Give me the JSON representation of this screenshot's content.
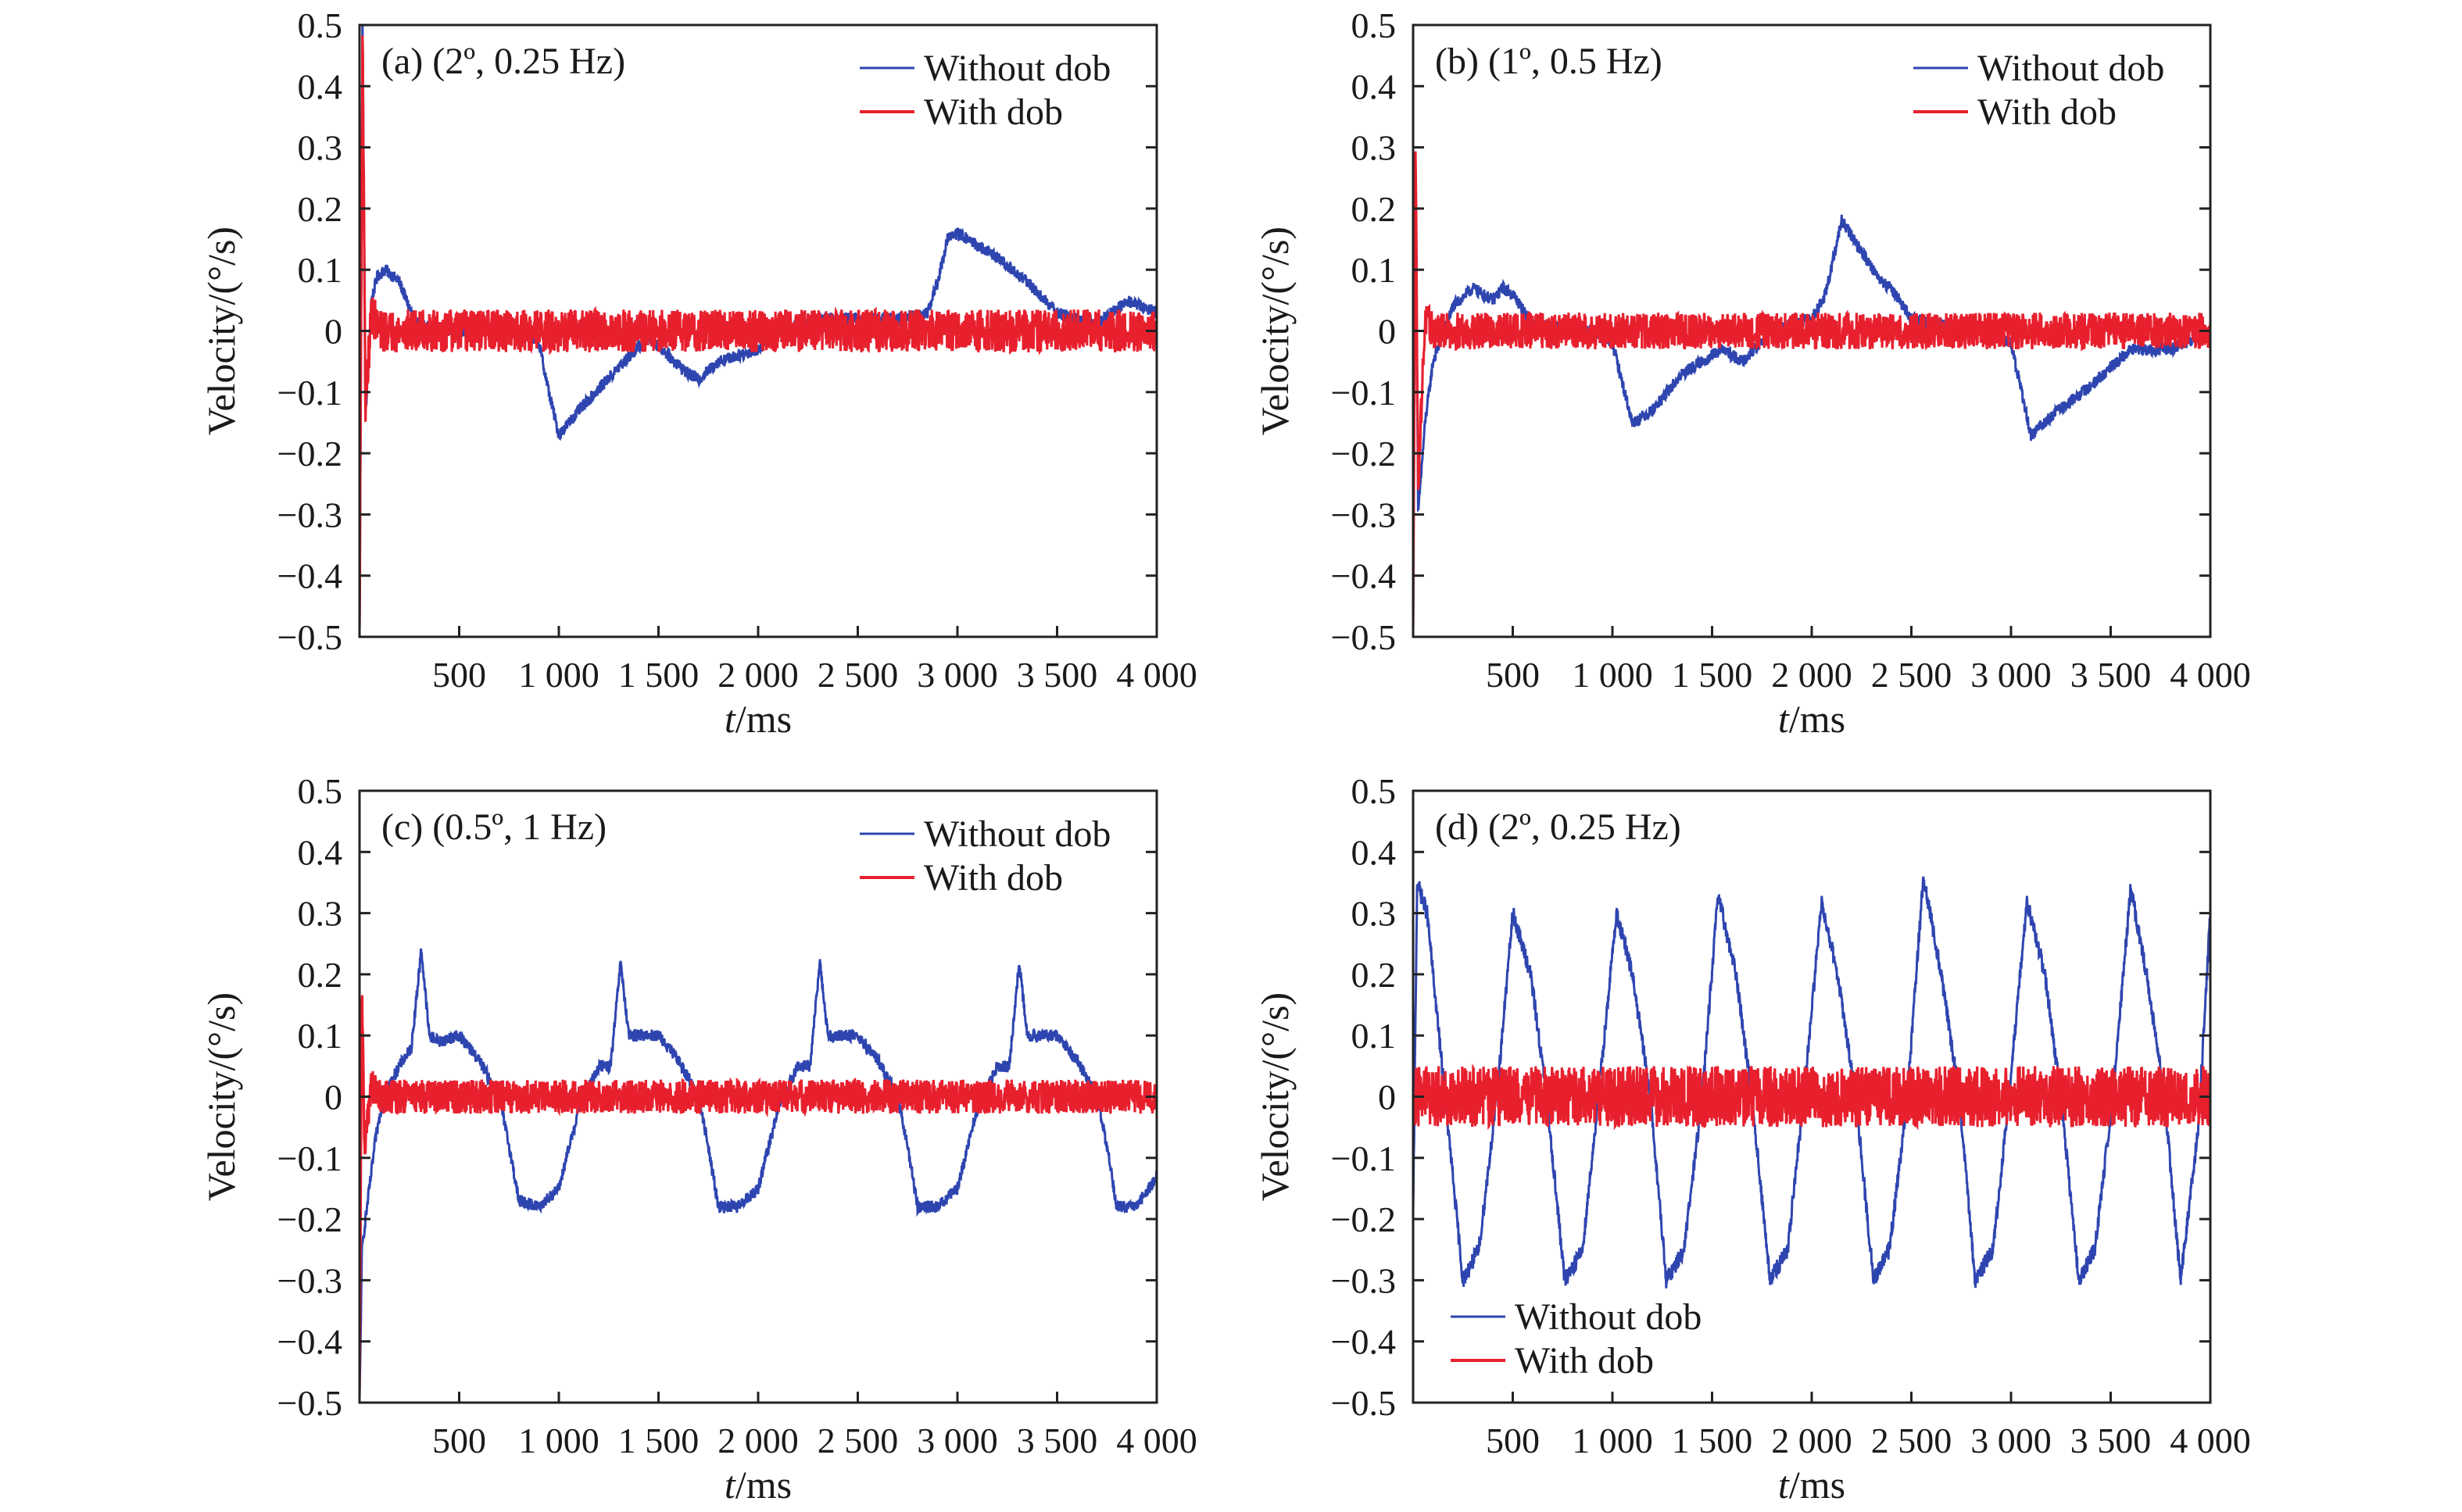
{
  "colors": {
    "without": "#2e45b0",
    "with": "#e8202e"
  },
  "chart_data": [
    {
      "type": "line",
      "panel_label": "(a) (2º, 0.25 Hz)",
      "xlabel": {
        "italic": "t",
        "rest": "/ms"
      },
      "ylabel": "Velocity/(°/s)",
      "xlim": [
        0,
        4000
      ],
      "ylim": [
        -0.5,
        0.5
      ],
      "xtick_labels": [
        "500",
        "1 000",
        "1 500",
        "2 000",
        "2 500",
        "3 000",
        "3 500",
        "4 000"
      ],
      "ytick_labels": [
        "0.5",
        "0.4",
        "0.3",
        "0.2",
        "0.1",
        "0",
        "−0.1",
        "−0.2",
        "−0.3",
        "−0.4",
        "−0.5"
      ],
      "legend_position": "top-right",
      "series": [
        {
          "name": "Without dob",
          "color": "#2e45b0",
          "noise": 0.01,
          "x": [
            0,
            15,
            30,
            60,
            90,
            130,
            200,
            260,
            300,
            500,
            800,
            900,
            950,
            1000,
            1100,
            1300,
            1450,
            1650,
            1700,
            1800,
            2000,
            2100,
            2300,
            2700,
            2850,
            2900,
            2950,
            3000,
            3200,
            3350,
            3500,
            3700,
            3850,
            4000
          ],
          "y": [
            -0.5,
            0.5,
            -0.14,
            0.05,
            0.09,
            0.1,
            0.08,
            0.03,
            0.01,
            0.0,
            0.0,
            -0.02,
            -0.1,
            -0.17,
            -0.13,
            -0.06,
            -0.01,
            -0.07,
            -0.08,
            -0.05,
            -0.03,
            0.0,
            0.02,
            0.02,
            0.03,
            0.08,
            0.15,
            0.16,
            0.12,
            0.08,
            0.03,
            0.01,
            0.05,
            0.03
          ]
        },
        {
          "name": "With dob",
          "color": "#e8202e",
          "noise": 0.035,
          "x": [
            0,
            15,
            30,
            60,
            100,
            4000
          ],
          "y": [
            -0.5,
            0.5,
            -0.12,
            0.03,
            0.0,
            0.0
          ]
        }
      ]
    },
    {
      "type": "line",
      "panel_label": "(b) (1º, 0.5 Hz)",
      "xlabel": {
        "italic": "t",
        "rest": "/ms"
      },
      "ylabel": "Velocity/(°/s)",
      "xlim": [
        0,
        4000
      ],
      "ylim": [
        -0.5,
        0.5
      ],
      "xtick_labels": [
        "500",
        "1 000",
        "1 500",
        "2 000",
        "2 500",
        "3 000",
        "3 500",
        "4 000"
      ],
      "ytick_labels": [
        "0.5",
        "0.4",
        "0.3",
        "0.2",
        "0.1",
        "0",
        "−0.1",
        "−0.2",
        "−0.3",
        "−0.4",
        "−0.5"
      ],
      "legend_position": "top-right",
      "series": [
        {
          "name": "Without dob",
          "color": "#2e45b0",
          "noise": 0.01,
          "x": [
            0,
            12,
            25,
            60,
            100,
            200,
            300,
            400,
            450,
            500,
            600,
            900,
            1000,
            1100,
            1200,
            1350,
            1550,
            1650,
            1800,
            2000,
            2070,
            2150,
            2250,
            2350,
            2400,
            2500,
            2650,
            2900,
            3000,
            3100,
            3200,
            3400,
            3600,
            3800,
            4000
          ],
          "y": [
            -0.5,
            0.3,
            -0.3,
            -0.15,
            -0.05,
            0.04,
            0.07,
            0.05,
            0.07,
            0.06,
            0.01,
            0.0,
            -0.02,
            -0.15,
            -0.13,
            -0.07,
            -0.03,
            -0.05,
            0.0,
            0.02,
            0.06,
            0.18,
            0.13,
            0.08,
            0.07,
            0.02,
            0.01,
            0.0,
            -0.02,
            -0.17,
            -0.14,
            -0.09,
            -0.03,
            -0.03,
            0.0
          ]
        },
        {
          "name": "With dob",
          "color": "#e8202e",
          "noise": 0.03,
          "x": [
            0,
            12,
            25,
            60,
            100,
            4000
          ],
          "y": [
            -0.5,
            0.32,
            -0.25,
            0.02,
            0.0,
            0.0
          ]
        }
      ]
    },
    {
      "type": "line",
      "panel_label": "(c) (0.5º, 1 Hz)",
      "xlabel": {
        "italic": "t",
        "rest": "/ms"
      },
      "ylabel": "Velocity/(°/s)",
      "xlim": [
        0,
        4000
      ],
      "ylim": [
        -0.5,
        0.5
      ],
      "xtick_labels": [
        "500",
        "1 000",
        "1 500",
        "2 000",
        "2 500",
        "3 000",
        "3 500",
        "4 000"
      ],
      "ytick_labels": [
        "0.5",
        "0.4",
        "0.3",
        "0.2",
        "0.1",
        "0",
        "−0.1",
        "−0.2",
        "−0.3",
        "−0.4",
        "−0.5"
      ],
      "legend_position": "top-right",
      "series": [
        {
          "name": "Without dob",
          "color": "#2e45b0",
          "noise": 0.01,
          "x": [
            0,
            12,
            30,
            80,
            120,
            200,
            260,
            310,
            350,
            400,
            500,
            600,
            700,
            750,
            800,
            900,
            1000,
            1100,
            1200,
            1260,
            1310,
            1350,
            1400,
            1500,
            1600,
            1700,
            1750,
            1800,
            1900,
            2000,
            2100,
            2200,
            2260,
            2310,
            2350,
            2400,
            2500,
            2600,
            2700,
            2750,
            2800,
            2900,
            3000,
            3100,
            3200,
            3260,
            3310,
            3350,
            3400,
            3500,
            3600,
            3700,
            3750,
            3800,
            3900,
            4000
          ],
          "y": [
            -0.5,
            -0.25,
            -0.2,
            -0.07,
            0.0,
            0.05,
            0.08,
            0.24,
            0.1,
            0.09,
            0.1,
            0.06,
            0.0,
            -0.08,
            -0.17,
            -0.18,
            -0.15,
            -0.02,
            0.05,
            0.05,
            0.22,
            0.1,
            0.1,
            0.1,
            0.06,
            0.0,
            -0.08,
            -0.18,
            -0.18,
            -0.15,
            -0.02,
            0.05,
            0.05,
            0.22,
            0.1,
            0.1,
            0.1,
            0.06,
            0.0,
            -0.08,
            -0.18,
            -0.18,
            -0.15,
            -0.02,
            0.05,
            0.05,
            0.22,
            0.1,
            0.1,
            0.1,
            0.06,
            0.0,
            -0.08,
            -0.18,
            -0.18,
            -0.13
          ]
        },
        {
          "name": "With dob",
          "color": "#e8202e",
          "noise": 0.028,
          "x": [
            0,
            12,
            25,
            60,
            100,
            4000
          ],
          "y": [
            -0.5,
            0.18,
            -0.08,
            0.02,
            0.0,
            0.0
          ]
        }
      ]
    },
    {
      "type": "line",
      "panel_label": "(d) (2º, 0.25 Hz)",
      "xlabel": {
        "italic": "t",
        "rest": "/ms"
      },
      "ylabel": "Velocity/(°/s)",
      "xlim": [
        0,
        4000
      ],
      "ylim": [
        -0.5,
        0.5
      ],
      "xtick_labels": [
        "500",
        "1 000",
        "1 500",
        "2 000",
        "2 500",
        "3 000",
        "3 500",
        "4 000"
      ],
      "ytick_labels": [
        "0.5",
        "0.4",
        "0.3",
        "0.2",
        "0.1",
        "0",
        "−0.1",
        "−0.2",
        "−0.3",
        "−0.4",
        "−0.5"
      ],
      "legend_position": "bottom-left",
      "series": [
        {
          "name": "Without dob",
          "color": "#2e45b0",
          "noise": 0.014,
          "x": [
            0,
            20,
            70,
            160,
            250,
            330,
            420,
            500,
            590,
            670,
            760,
            850,
            930,
            1020,
            1100,
            1190,
            1270,
            1360,
            1450,
            1530,
            1620,
            1700,
            1790,
            1880,
            1960,
            2050,
            2130,
            2220,
            2310,
            2390,
            2480,
            2560,
            2650,
            2740,
            2820,
            2910,
            2990,
            3080,
            3170,
            3250,
            3340,
            3420,
            3510,
            3600,
            3680,
            3770,
            3850,
            3940,
            4000
          ],
          "y": [
            -0.2,
            0.35,
            0.3,
            0.0,
            -0.3,
            -0.25,
            0.0,
            0.3,
            0.2,
            0.0,
            -0.3,
            -0.25,
            0.0,
            0.3,
            0.2,
            0.0,
            -0.3,
            -0.25,
            0.0,
            0.33,
            0.2,
            0.0,
            -0.3,
            -0.25,
            0.0,
            0.32,
            0.2,
            0.0,
            -0.3,
            -0.25,
            0.0,
            0.36,
            0.2,
            0.0,
            -0.3,
            -0.25,
            0.0,
            0.32,
            0.2,
            0.0,
            -0.3,
            -0.25,
            0.0,
            0.34,
            0.2,
            0.0,
            -0.3,
            -0.05,
            0.3
          ]
        },
        {
          "name": "With dob",
          "color": "#e8202e",
          "noise": 0.05,
          "x": [
            0,
            4000
          ],
          "y": [
            0.0,
            0.0
          ]
        }
      ]
    }
  ]
}
